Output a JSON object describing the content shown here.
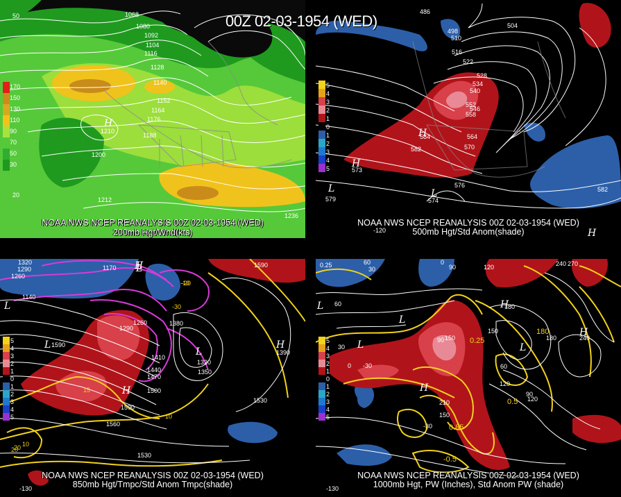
{
  "header": {
    "title": "00Z 02-03-1954 (WED)"
  },
  "panels": {
    "p200": {
      "source": "NOAA NWS NCEP REANALYSIS 00Z 02-03-1954 (WED)",
      "field": "200mb Hgt/Wnd(kts)",
      "legend": [
        "170",
        "150",
        "130",
        "110",
        "90",
        "70",
        "50",
        "30"
      ],
      "contours": [
        "1068",
        "1080",
        "1092",
        "1104",
        "1116",
        "1128",
        "1140",
        "1152",
        "1164",
        "1176",
        "1188",
        "1200",
        "1212",
        "1236",
        "1210"
      ],
      "axis": [
        "50",
        "20"
      ]
    },
    "p500": {
      "source": "NOAA NWS NCEP REANALYSIS 00Z 02-03-1954 (WED)",
      "field": "500mb Hgt/Std Anom(shade)",
      "legend": [
        "5",
        "4",
        "3",
        "2",
        "1",
        "0",
        "1",
        "2",
        "3",
        "4",
        "5"
      ],
      "contours": [
        "486",
        "498",
        "504",
        "510",
        "516",
        "522",
        "528",
        "534",
        "540",
        "552",
        "558",
        "546",
        "564",
        "570",
        "576",
        "582",
        "584",
        "573",
        "579",
        "574",
        "582"
      ],
      "axis": [
        "-120"
      ]
    },
    "p850": {
      "source": "NOAA NWS NCEP REANALYSIS 00Z 02-03-1954 (WED)",
      "field": "850mb Hgt/Tmpc/Std Anom Tmpc(shade)",
      "legend": [
        "5",
        "4",
        "3",
        "2",
        "1",
        "0",
        "1",
        "2",
        "3",
        "4",
        "5"
      ],
      "contours": [
        "1320",
        "1290",
        "1260",
        "1140",
        "1170",
        "1290",
        "1260",
        "1380",
        "1410",
        "1440",
        "1470",
        "1500",
        "1530",
        "1560",
        "1590",
        "1350",
        "1320",
        "1590",
        "1530",
        "1590",
        "1390"
      ],
      "temps": [
        "20",
        "15",
        "10",
        "-10",
        "-20",
        "-30",
        "10",
        "20"
      ],
      "axis": [
        "-130"
      ]
    },
    "p1000": {
      "source": "NOAA NWS NCEP REANALYSIS 00Z 02-03-1954 (WED)",
      "field": "1000mb Hgt, PW (Inches), Std Anom PW (shade)",
      "legend": [
        "5",
        "4",
        "3",
        "2",
        "1",
        "0",
        "1",
        "2",
        "3",
        "4",
        "5"
      ],
      "contours": [
        "0.25",
        "60",
        "30",
        "0",
        "120",
        "90",
        "270",
        "240",
        "180",
        "150",
        "120",
        "90",
        "60",
        "30",
        "0",
        "-30",
        "150",
        "180",
        "240",
        "210",
        "150",
        "-30",
        "60",
        "90",
        "120",
        "0.5",
        "0.25",
        "0.85",
        "-0.5",
        "180"
      ],
      "axis": [
        "-130"
      ]
    }
  },
  "colors": {
    "background": "#000000",
    "wind_green_dark": "#1f9a1f",
    "wind_green": "#56c93a",
    "wind_light": "#a8e23c",
    "wind_yellow": "#f0c21c",
    "wind_orange": "#c98c1a",
    "anom_red": "#b0141a",
    "anom_pink": "#e88a95",
    "anom_blue": "#2c5fa8",
    "contour_yellow": "#f2d21b",
    "contour_magenta": "#d83ad8"
  }
}
